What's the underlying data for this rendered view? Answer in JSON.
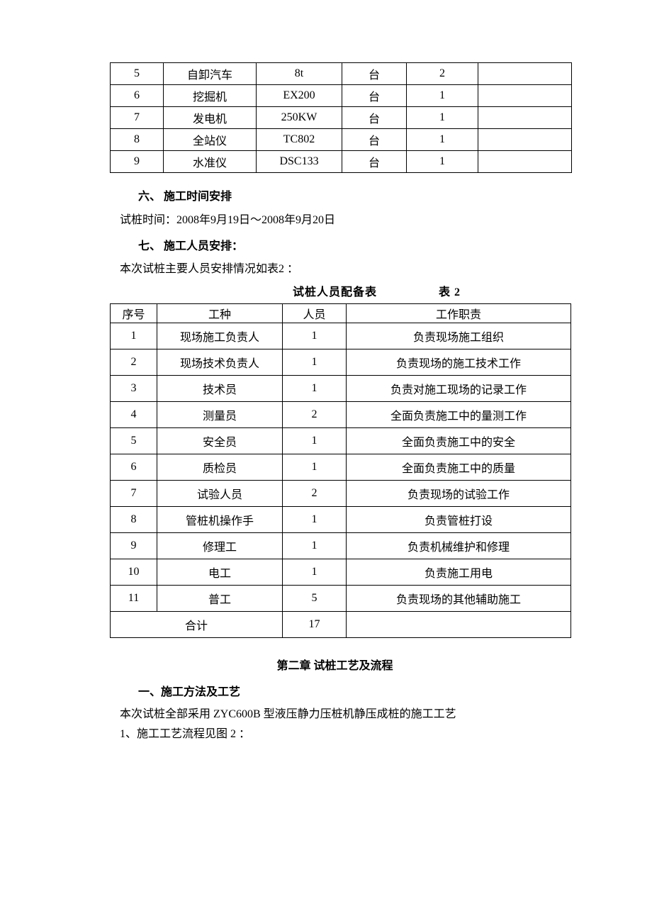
{
  "table1": {
    "rows": [
      {
        "no": "5",
        "name": "自卸汽车",
        "model": "8t",
        "unit": "台",
        "qty": "2",
        "note": ""
      },
      {
        "no": "6",
        "name": "挖掘机",
        "model": "EX200",
        "unit": "台",
        "qty": "1",
        "note": ""
      },
      {
        "no": "7",
        "name": "发电机",
        "model": "250KW",
        "unit": "台",
        "qty": "1",
        "note": ""
      },
      {
        "no": "8",
        "name": "全站仪",
        "model": "TC802",
        "unit": "台",
        "qty": "1",
        "note": ""
      },
      {
        "no": "9",
        "name": "水准仪",
        "model": "DSC133",
        "unit": "台",
        "qty": "1",
        "note": ""
      }
    ]
  },
  "section6": {
    "heading": "六、 施工时间安排",
    "body": "试桩时间：2008年9月19日～2008年9月20日"
  },
  "section7": {
    "heading": "七、 施工人员安排：",
    "body": "本次试桩主要人员安排情况如表2 ："
  },
  "table2": {
    "caption": "试桩人员配备表",
    "caption_right": "表 2",
    "header": {
      "no": "序号",
      "role": "工种",
      "count": "人员",
      "duty": "工作职责"
    },
    "rows": [
      {
        "no": "1",
        "role": "现场施工负责人",
        "count": "1",
        "duty": "负责现场施工组织"
      },
      {
        "no": "2",
        "role": "现场技术负责人",
        "count": "1",
        "duty": "负责现场的施工技术工作"
      },
      {
        "no": "3",
        "role": "技术员",
        "count": "1",
        "duty": "负责对施工现场的记录工作"
      },
      {
        "no": "4",
        "role": "测量员",
        "count": "2",
        "duty": "全面负责施工中的量测工作"
      },
      {
        "no": "5",
        "role": "安全员",
        "count": "1",
        "duty": "全面负责施工中的安全"
      },
      {
        "no": "6",
        "role": "质检员",
        "count": "1",
        "duty": "全面负责施工中的质量"
      },
      {
        "no": "7",
        "role": "试验人员",
        "count": "2",
        "duty": "负责现场的试验工作"
      },
      {
        "no": "8",
        "role": "管桩机操作手",
        "count": "1",
        "duty": "负责管桩打设"
      },
      {
        "no": "9",
        "role": "修理工",
        "count": "1",
        "duty": "负责机械维护和修理"
      },
      {
        "no": "10",
        "role": "电工",
        "count": "1",
        "duty": "负责施工用电"
      },
      {
        "no": "11",
        "role": "普工",
        "count": "5",
        "duty": "负责现场的其他辅助施工"
      }
    ],
    "total_label": "合计",
    "total_count": "17"
  },
  "chapter2": {
    "title": "第二章 试桩工艺及流程",
    "s1_heading": "一、施工方法及工艺",
    "s1_body1": "本次试桩全部采用 ZYC600B 型液压静力压桩机静压成桩的施工工艺",
    "s1_body2": "1、施工工艺流程见图 2 ："
  }
}
